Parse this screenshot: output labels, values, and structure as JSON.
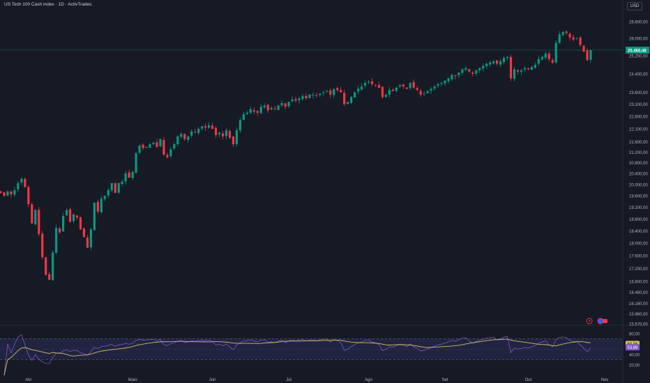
{
  "header": {
    "title": "US Tech 100 Cash Index · 1D · ActivTrades",
    "currency": "USD"
  },
  "colors": {
    "background": "#161A25",
    "up": "#089981",
    "down": "#F23645",
    "rsi_line": "#7E57C2",
    "rsi_ma": "#D4C15A",
    "rsi_band": "#2A2E5A",
    "axis_text": "#B2B5BE",
    "price_tag": "#089981"
  },
  "chart_data": {
    "type": "candlestick",
    "title": "US Tech 100 Cash Index · 1D · ActivTrades",
    "price_axis": {
      "ticks": [
        "26.800,00",
        "26.000,00",
        "25.200,00",
        "24.400,00",
        "23.600,00",
        "23.100,00",
        "22.600,00",
        "22.100,00",
        "21.600,00",
        "21.200,00",
        "20.800,00",
        "20.400,00",
        "20.000,00",
        "19.600,00",
        "19.200,00",
        "18.800,00",
        "18.400,00",
        "18.000,00",
        "17.600,00",
        "17.200,00",
        "16.800,00",
        "16.480,00",
        "16.160,00",
        "15.860,00",
        "15.570,00"
      ],
      "tick_values": [
        26800,
        26000,
        25200,
        24400,
        23600,
        23100,
        22600,
        22100,
        21600,
        21200,
        20800,
        20400,
        20000,
        19600,
        19200,
        18800,
        18400,
        18000,
        17600,
        17200,
        16800,
        16480,
        16160,
        15860,
        15570
      ],
      "scale": "log",
      "last_price": 25460.48,
      "last_price_label": "25.460,48"
    },
    "time_axis": {
      "labels": [
        "Abr",
        "Maio",
        "Jun",
        "Jul",
        "Ago",
        "Set",
        "Out",
        "Nov"
      ],
      "label_index": [
        8,
        38,
        61,
        83,
        106,
        128,
        152,
        174
      ]
    },
    "series": [
      {
        "name": "candles",
        "ohlc_close": [
          19700,
          19600,
          19750,
          19650,
          19800,
          20050,
          20200,
          19900,
          19300,
          18650,
          19100,
          18300,
          17550,
          17000,
          16850,
          17700,
          18500,
          18350,
          18900,
          19100,
          18700,
          18950,
          18850,
          18450,
          18200,
          17850,
          18450,
          19350,
          19050,
          19500,
          19600,
          19800,
          20050,
          19700,
          20050,
          20100,
          20400,
          20250,
          20450,
          21150,
          21450,
          21350,
          21400,
          21500,
          21550,
          21400,
          21700,
          21100,
          21000,
          21300,
          21500,
          21800,
          21900,
          21700,
          21800,
          22000,
          21950,
          22100,
          22200,
          22150,
          22250,
          22100,
          21850,
          21950,
          21800,
          22050,
          21750,
          21500,
          22050,
          22450,
          22700,
          22750,
          22900,
          22800,
          22750,
          23000,
          23050,
          22850,
          22950,
          22900,
          23050,
          23150,
          23000,
          23200,
          23300,
          23250,
          23350,
          23450,
          23350,
          23500,
          23500,
          23450,
          23550,
          23600,
          23650,
          23500,
          23750,
          23700,
          23600,
          23100,
          23200,
          23400,
          23600,
          23750,
          23850,
          24000,
          24050,
          23950,
          23900,
          23800,
          23400,
          23500,
          23700,
          23650,
          23800,
          23900,
          23850,
          23750,
          24000,
          23800,
          23700,
          23500,
          23550,
          23650,
          23750,
          23850,
          23950,
          24000,
          24100,
          24200,
          24350,
          24300,
          24450,
          24600,
          24650,
          24500,
          24400,
          24550,
          24650,
          24750,
          24850,
          24900,
          24950,
          24850,
          24950,
          25100,
          25150,
          24200,
          24600,
          24500,
          24550,
          24650,
          24600,
          24700,
          24800,
          25050,
          25150,
          25300,
          25050,
          24900,
          25800,
          26200,
          26300,
          26250,
          26050,
          25950,
          26000,
          25700,
          25400,
          25000,
          25460.48
        ]
      },
      {
        "name": "RSI",
        "axis_ticks": [
          "80,00",
          "60,00",
          "40,00",
          "20,00"
        ],
        "tick_values": [
          80,
          60,
          40,
          20
        ],
        "bands": [
          70,
          30
        ],
        "last_value_labels": [
          "60,06",
          "53,69"
        ],
        "last_values": [
          60.06,
          53.69
        ]
      }
    ]
  },
  "indicator_badges": {
    "rsi_label": "RSI"
  }
}
